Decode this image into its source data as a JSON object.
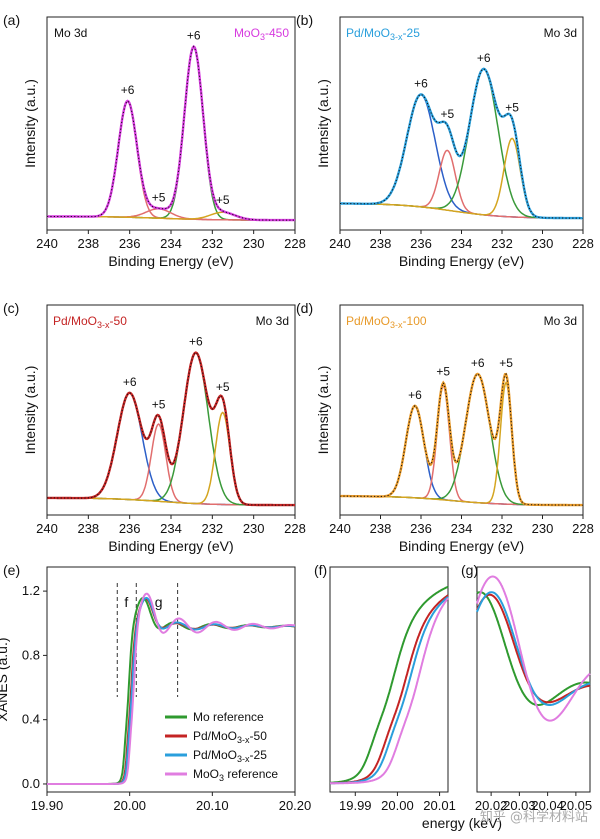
{
  "watermark": "知乎 @科学材料站",
  "chart_data": [
    {
      "type": "line",
      "panel": "(a)",
      "corner_label": "Mo 3d",
      "sample_label": "MoO3-450",
      "sample_color": "#d63adf",
      "xlabel": "Binding Energy (eV)",
      "ylabel": "Intensity (a.u.)",
      "xlim": [
        240,
        228
      ],
      "xticks": [
        240,
        238,
        236,
        234,
        232,
        230,
        228
      ],
      "y_ticks_shown": false,
      "background": {
        "left": 0.03,
        "right": 0.01
      },
      "envelope_color": "#d63adf",
      "components": [
        {
          "center": 236.1,
          "height": 0.62,
          "width": 0.45,
          "color": "#e16e6e",
          "label": "+6"
        },
        {
          "center": 232.9,
          "height": 0.92,
          "width": 0.45,
          "color": "#3a9a3a",
          "label": "+6"
        },
        {
          "center": 234.6,
          "height": 0.05,
          "width": 0.6,
          "color": "#e16e6e",
          "label": "+5"
        },
        {
          "center": 231.5,
          "height": 0.04,
          "width": 0.6,
          "color": "#d4a520",
          "label": "+5"
        }
      ]
    },
    {
      "type": "line",
      "panel": "(b)",
      "corner_label": "Mo 3d",
      "sample_label": "Pd/MoO3-x-25",
      "sample_color": "#2a9fdc",
      "xlabel": "Binding Energy (eV)",
      "ylabel": "Intensity (a.u.)",
      "xlim": [
        240,
        228
      ],
      "xticks": [
        240,
        238,
        236,
        234,
        232,
        230,
        228
      ],
      "y_ticks_shown": false,
      "background": {
        "left": 0.1,
        "right": 0.02
      },
      "envelope_color": "#2a9fdc",
      "components": [
        {
          "center": 236.0,
          "height": 0.6,
          "width": 0.7,
          "color": "#2c5fc8",
          "label": "+6"
        },
        {
          "center": 234.7,
          "height": 0.32,
          "width": 0.4,
          "color": "#e16e6e",
          "label": "+5"
        },
        {
          "center": 232.9,
          "height": 0.78,
          "width": 0.7,
          "color": "#3a9a3a",
          "label": "+6"
        },
        {
          "center": 231.5,
          "height": 0.42,
          "width": 0.4,
          "color": "#d4a520",
          "label": "+5"
        }
      ]
    },
    {
      "type": "line",
      "panel": "(c)",
      "corner_label": "Mo 3d",
      "sample_label": "Pd/MoO3-x-50",
      "sample_color": "#c42424",
      "xlabel": "Binding Energy (eV)",
      "ylabel": "Intensity (a.u.)",
      "xlim": [
        240,
        228
      ],
      "xticks": [
        240,
        238,
        236,
        234,
        232,
        230,
        228
      ],
      "y_ticks_shown": false,
      "background": {
        "left": 0.05,
        "right": 0.01
      },
      "envelope_color": "#c42424",
      "components": [
        {
          "center": 236.0,
          "height": 0.58,
          "width": 0.6,
          "color": "#2c5fc8",
          "label": "+6"
        },
        {
          "center": 234.6,
          "height": 0.42,
          "width": 0.35,
          "color": "#e16e6e",
          "label": "+5"
        },
        {
          "center": 232.8,
          "height": 0.82,
          "width": 0.6,
          "color": "#3a9a3a",
          "label": "+6"
        },
        {
          "center": 231.5,
          "height": 0.5,
          "width": 0.35,
          "color": "#d4a520",
          "label": "+5"
        }
      ]
    },
    {
      "type": "line",
      "panel": "(d)",
      "corner_label": "Mo 3d",
      "sample_label": "Pd/MoO3-x-100",
      "sample_color": "#e89a2a",
      "xlabel": "Binding Energy (eV)",
      "ylabel": "Intensity (a.u.)",
      "xlim": [
        240,
        228
      ],
      "xticks": [
        240,
        238,
        236,
        234,
        232,
        230,
        228
      ],
      "y_ticks_shown": false,
      "background": {
        "left": 0.06,
        "right": 0.01
      },
      "envelope_color": "#e89a2a",
      "components": [
        {
          "center": 236.3,
          "height": 0.5,
          "width": 0.45,
          "color": "#2c5fc8",
          "label": "+6"
        },
        {
          "center": 234.9,
          "height": 0.62,
          "width": 0.3,
          "color": "#e16e6e",
          "label": "+5"
        },
        {
          "center": 233.2,
          "height": 0.7,
          "width": 0.6,
          "color": "#3a9a3a",
          "label": "+6"
        },
        {
          "center": 231.8,
          "height": 0.66,
          "width": 0.28,
          "color": "#d4a520",
          "label": "+5"
        }
      ]
    },
    {
      "type": "line",
      "panel": "(e)",
      "xlabel": "energy (keV)",
      "ylabel": "XANES (a.u.)",
      "xlim": [
        19.9,
        20.2
      ],
      "ylim": [
        -0.05,
        1.35
      ],
      "xticks": [
        "19.90",
        "20.00",
        "20.10",
        "20.20"
      ],
      "yticks": [
        "0.0",
        "0.4",
        "0.8",
        "1.2"
      ],
      "region_labels": [
        "f",
        "g"
      ],
      "legend_position": "lower-right",
      "series": [
        {
          "name": "Mo reference",
          "color": "#2f9a2f",
          "e0": 19.998,
          "osc": 0.05
        },
        {
          "name": "Pd/MoO3-x-50",
          "color": "#c42424",
          "e0": 20.001,
          "osc": 0.04
        },
        {
          "name": "Pd/MoO3-x-25",
          "color": "#2a9fdc",
          "e0": 20.002,
          "osc": 0.05
        },
        {
          "name": "MoO3 reference",
          "color": "#e07de0",
          "e0": 20.004,
          "osc": 0.1
        }
      ]
    },
    {
      "type": "line",
      "panel": "(f)",
      "xlim": [
        19.984,
        20.012
      ],
      "xticks": [
        "19.99",
        "20.00",
        "20.01"
      ],
      "series_ref": "(e)"
    },
    {
      "type": "line",
      "panel": "(g)",
      "xlim": [
        20.015,
        20.055
      ],
      "xticks": [
        "20.02",
        "20.03",
        "20.04",
        "20.05"
      ],
      "series_ref": "(e)"
    }
  ]
}
